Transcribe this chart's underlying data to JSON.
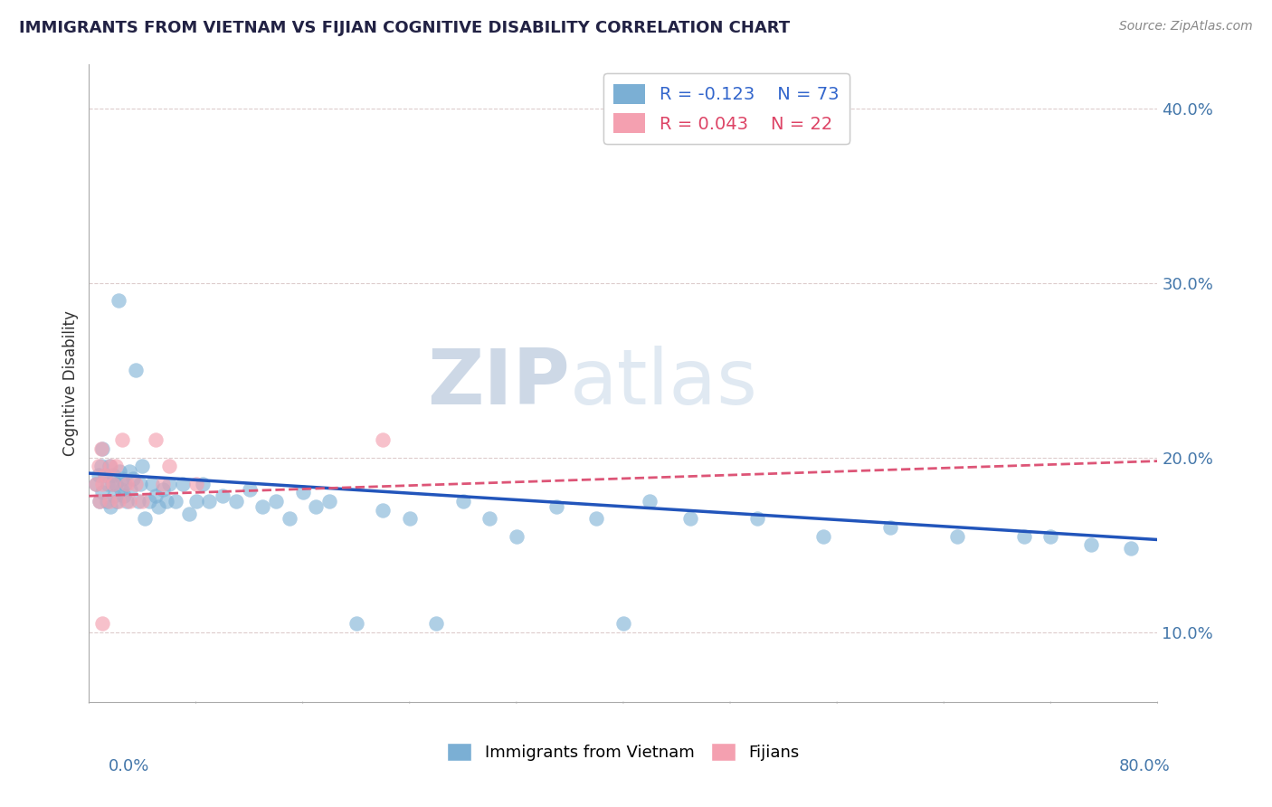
{
  "title": "IMMIGRANTS FROM VIETNAM VS FIJIAN COGNITIVE DISABILITY CORRELATION CHART",
  "source": "Source: ZipAtlas.com",
  "ylabel": "Cognitive Disability",
  "xlim": [
    0.0,
    0.8
  ],
  "ylim": [
    0.06,
    0.425
  ],
  "yticks": [
    0.1,
    0.2,
    0.3,
    0.4
  ],
  "ytick_labels": [
    "10.0%",
    "20.0%",
    "30.0%",
    "40.0%"
  ],
  "vietnam_R": -0.123,
  "vietnam_N": 73,
  "fijian_R": 0.043,
  "fijian_N": 22,
  "blue_color": "#7bafd4",
  "pink_color": "#f4a0b0",
  "blue_line_color": "#2255bb",
  "pink_line_color": "#dd5577",
  "legend_vietnam": "Immigrants from Vietnam",
  "legend_fijian": "Fijians",
  "watermark_zip": "ZIP",
  "watermark_atlas": "atlas",
  "title_fontsize": 13,
  "vietnam_x": [
    0.005,
    0.007,
    0.008,
    0.009,
    0.01,
    0.01,
    0.012,
    0.013,
    0.014,
    0.015,
    0.016,
    0.017,
    0.018,
    0.019,
    0.02,
    0.021,
    0.022,
    0.023,
    0.024,
    0.025,
    0.026,
    0.027,
    0.028,
    0.03,
    0.031,
    0.033,
    0.035,
    0.037,
    0.038,
    0.04,
    0.042,
    0.045,
    0.047,
    0.05,
    0.052,
    0.055,
    0.058,
    0.06,
    0.065,
    0.07,
    0.075,
    0.08,
    0.085,
    0.09,
    0.1,
    0.11,
    0.12,
    0.13,
    0.14,
    0.15,
    0.16,
    0.17,
    0.18,
    0.2,
    0.22,
    0.24,
    0.26,
    0.28,
    0.3,
    0.32,
    0.35,
    0.38,
    0.4,
    0.42,
    0.45,
    0.5,
    0.55,
    0.6,
    0.65,
    0.7,
    0.72,
    0.75,
    0.78
  ],
  "vietnam_y": [
    0.185,
    0.19,
    0.175,
    0.195,
    0.18,
    0.205,
    0.19,
    0.175,
    0.185,
    0.195,
    0.172,
    0.185,
    0.19,
    0.178,
    0.185,
    0.175,
    0.29,
    0.192,
    0.182,
    0.188,
    0.178,
    0.185,
    0.175,
    0.192,
    0.182,
    0.188,
    0.25,
    0.175,
    0.185,
    0.195,
    0.165,
    0.175,
    0.185,
    0.178,
    0.172,
    0.182,
    0.175,
    0.185,
    0.175,
    0.185,
    0.168,
    0.175,
    0.185,
    0.175,
    0.178,
    0.175,
    0.182,
    0.172,
    0.175,
    0.165,
    0.18,
    0.172,
    0.175,
    0.105,
    0.17,
    0.165,
    0.105,
    0.175,
    0.165,
    0.155,
    0.172,
    0.165,
    0.105,
    0.175,
    0.165,
    0.165,
    0.155,
    0.16,
    0.155,
    0.155,
    0.155,
    0.15,
    0.148
  ],
  "fijian_x": [
    0.005,
    0.007,
    0.008,
    0.009,
    0.01,
    0.012,
    0.015,
    0.016,
    0.018,
    0.02,
    0.022,
    0.025,
    0.028,
    0.03,
    0.035,
    0.04,
    0.05,
    0.055,
    0.06,
    0.08,
    0.22,
    0.01
  ],
  "fijian_y": [
    0.185,
    0.195,
    0.175,
    0.205,
    0.185,
    0.19,
    0.175,
    0.195,
    0.185,
    0.195,
    0.175,
    0.21,
    0.185,
    0.175,
    0.185,
    0.175,
    0.21,
    0.185,
    0.195,
    0.185,
    0.21,
    0.105
  ]
}
